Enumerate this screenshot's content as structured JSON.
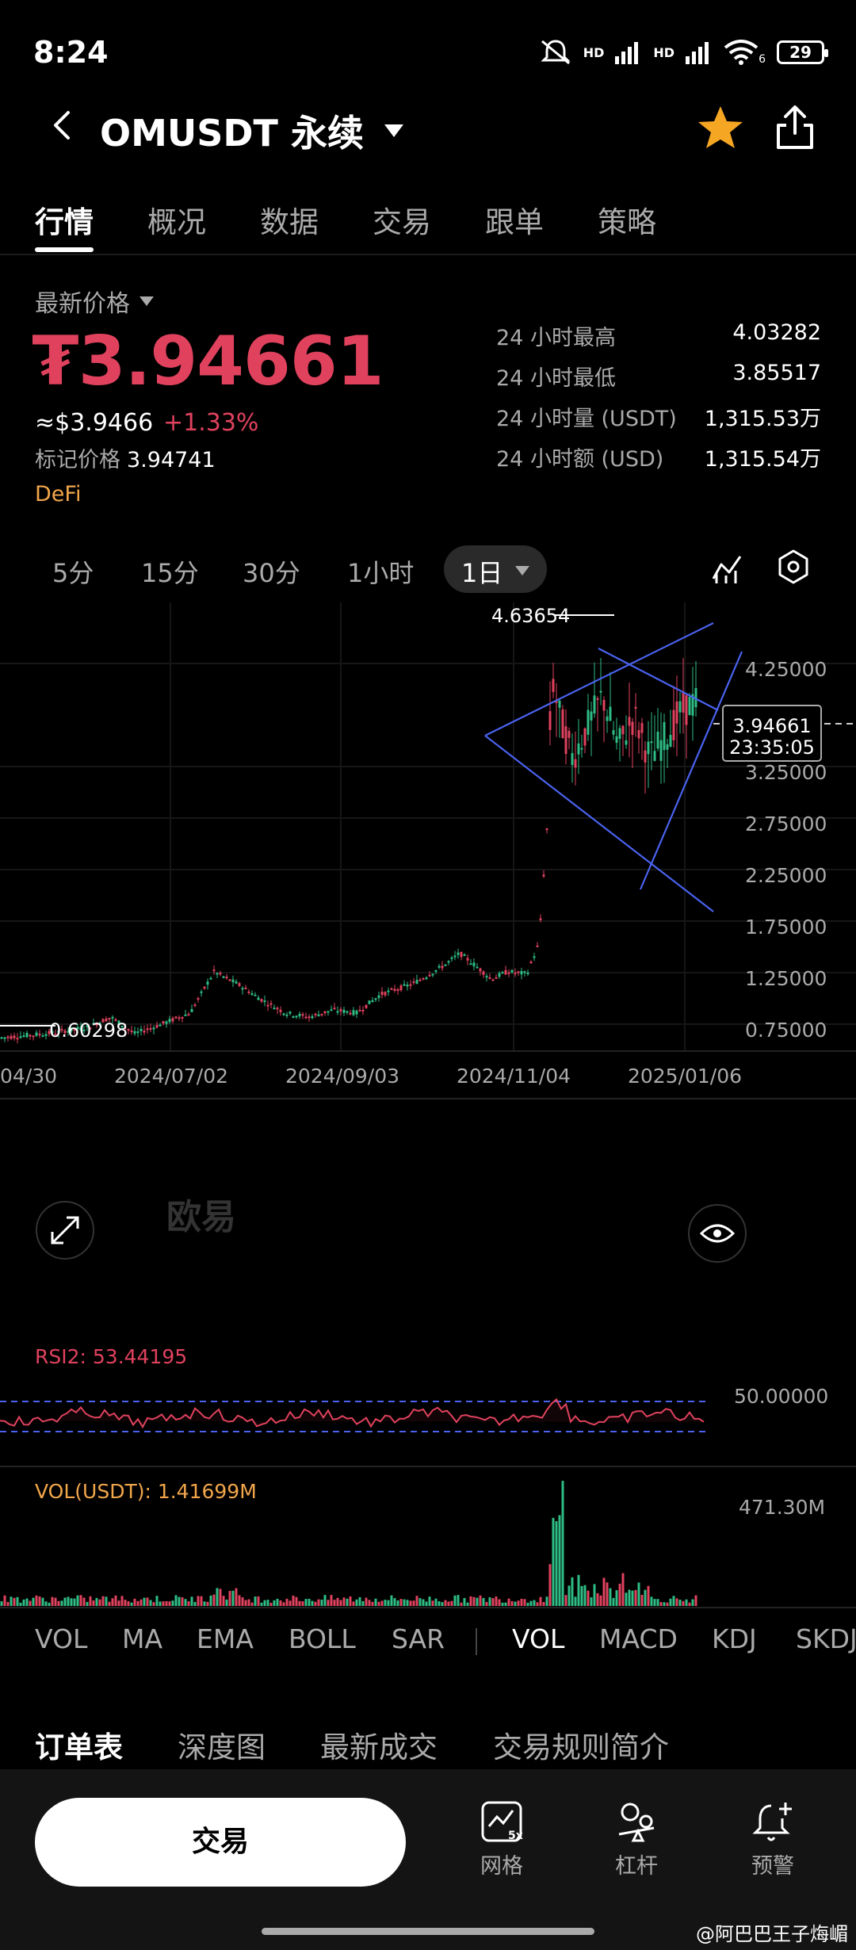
{
  "status_bar": {
    "time": "8:24",
    "net1": "HD",
    "net2": "HD",
    "wifi_sub": "6",
    "battery": "29"
  },
  "header": {
    "title": "OMUSDT 永续"
  },
  "tabs": [
    "行情",
    "概况",
    "数据",
    "交易",
    "跟单",
    "策略"
  ],
  "price": {
    "label": "最新价格",
    "last": "₮3.94661",
    "usd": "≈$3.9466",
    "change": "+1.33%",
    "mark_label": "标记价格",
    "mark_value": "3.94741",
    "tag": "DeFi"
  },
  "stats": [
    {
      "k": "24 小时最高",
      "v": "4.03282"
    },
    {
      "k": "24 小时最低",
      "v": "3.85517"
    },
    {
      "k": "24 小时量 (USDT)",
      "v": "1,315.53万"
    },
    {
      "k": "24 小时额 (USD)",
      "v": "1,315.54万"
    }
  ],
  "intervals": [
    "5分",
    "15分",
    "30分",
    "1小时"
  ],
  "interval_active": "1日",
  "chart": {
    "high_label": "4.63654",
    "low_label": "0.60298",
    "current_price": "3.94661",
    "countdown": "23:35:05",
    "y_ticks": [
      "4.25000",
      "3.25000",
      "2.75000",
      "2.25000",
      "1.75000",
      "1.25000",
      "0.75000"
    ],
    "x_ticks": [
      "04/30",
      "2024/07/02",
      "2024/09/03",
      "2024/11/04",
      "2025/01/06"
    ],
    "watermark": "欧易",
    "rsi_label": "RSI2: 53.44195",
    "rsi_tick": "50.00000",
    "vol_label": "VOL(USDT): 1.41699M",
    "vol_tick": "471.30M",
    "colors": {
      "up": "#2ebd85",
      "down": "#e0425e",
      "trend": "#4a63f0"
    }
  },
  "indicators_main": [
    "VOL",
    "MA",
    "EMA",
    "BOLL",
    "SAR"
  ],
  "indicators_sub": [
    "VOL",
    "MACD",
    "KDJ",
    "SKDJ"
  ],
  "lower_tabs": [
    "订单表",
    "深度图",
    "最新成交",
    "交易规则简介"
  ],
  "bottom": {
    "trade": "交易",
    "grid": "网格",
    "grid_badge": "5x",
    "leverage": "杠杆",
    "alert": "预警"
  },
  "watermark": "@阿巴巴王子烸嵋"
}
